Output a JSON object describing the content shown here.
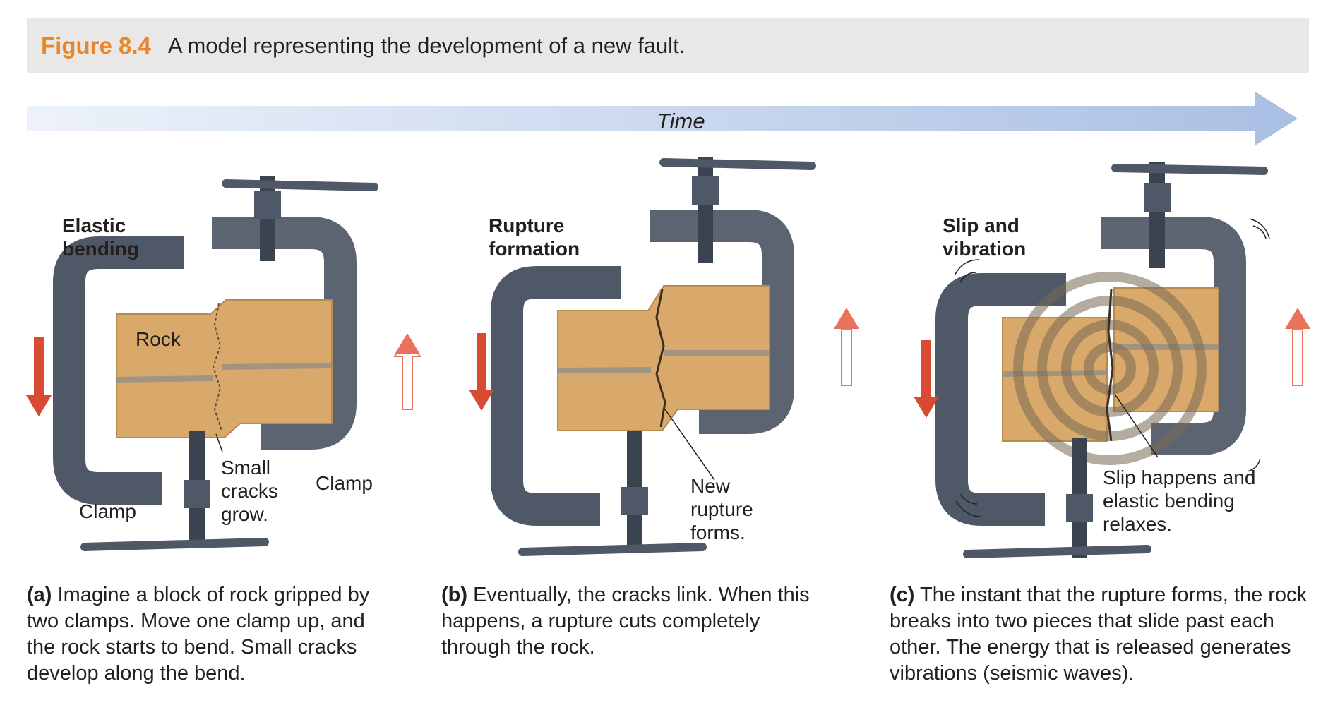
{
  "figure": {
    "number": "Figure 8.4",
    "title": "A model representing the development of a new fault.",
    "accent_color": "#e8862a"
  },
  "timeline": {
    "label": "Time",
    "arrow_color": "#b5c8e6"
  },
  "panels": [
    {
      "stage_title_line1": "Elastic",
      "stage_title_line2": "bending",
      "rock_label": "Rock",
      "clamp_left_label": "Clamp",
      "clamp_right_label": "Clamp",
      "callout": [
        "Small",
        "cracks",
        "grow."
      ],
      "caption_letter": "(a)",
      "caption_text": "Imagine a block of rock gripped by two clamps. Move one clamp up, and the rock starts to bend. Small cracks develop along the bend."
    },
    {
      "stage_title_line1": "Rupture",
      "stage_title_line2": "formation",
      "callout": [
        "New",
        "rupture",
        "forms."
      ],
      "caption_letter": "(b)",
      "caption_text": "Eventually, the cracks link. When this happens, a rupture cuts completely through the rock."
    },
    {
      "stage_title_line1": "Slip and",
      "stage_title_line2": "vibration",
      "callout": [
        "Slip happens and",
        "elastic bending",
        "relaxes."
      ],
      "caption_letter": "(c)",
      "caption_text": "The instant that the rupture forms, the rock breaks into two pieces that slide past each other. The energy that is released generates vibrations (seismic waves)."
    }
  ],
  "colors": {
    "clamp": "#4f5866",
    "rock": "#d9a96b",
    "arrow_down": "#d94a32",
    "arrow_up": "#e8735a"
  }
}
